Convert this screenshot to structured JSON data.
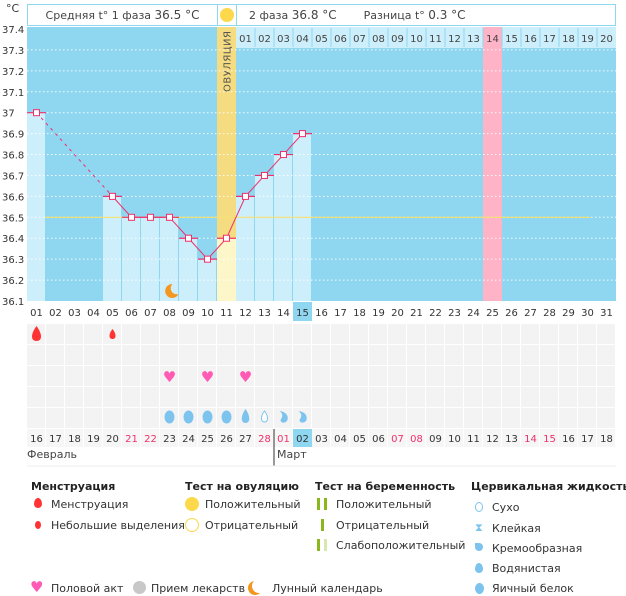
{
  "header": {
    "phase1_label": "Средняя t° 1 фаза",
    "phase1_value": "36.5 °C",
    "phase2_label": "2 фаза",
    "phase2_value": "36.8 °C",
    "diff_label": "Разница t°",
    "diff_value": "0.3 °C",
    "ovulation_label": "ОВУЛЯЦИЯ"
  },
  "colors": {
    "background": "#8fd6f0",
    "bar": "#cdeefb",
    "ovulation": "#f5dc80",
    "ovulation_low": "#fdf6c8",
    "highlight_day": "#ffb3c6",
    "line": "#f0306a",
    "coverline": "#f5e070"
  },
  "chart_data": {
    "type": "bar+line",
    "ylabel": "°C",
    "ylim": [
      36.1,
      37.4
    ],
    "y_ticks": [
      "37.4",
      "37.3",
      "37.2",
      "37.1",
      "37",
      "36.9",
      "36.8",
      "36.7",
      "36.6",
      "36.5",
      "36.4",
      "36.3",
      "36.2",
      "36.1"
    ],
    "cycle_days": [
      "01",
      "02",
      "03",
      "04",
      "05",
      "06",
      "07",
      "08",
      "09",
      "10",
      "11",
      "12",
      "13",
      "14",
      "15",
      "16",
      "17",
      "18",
      "19",
      "20",
      "21",
      "22",
      "23",
      "24",
      "25",
      "26",
      "27",
      "28",
      "29",
      "30",
      "31"
    ],
    "temperatures": [
      37.0,
      null,
      null,
      null,
      36.6,
      36.5,
      36.5,
      36.5,
      36.4,
      36.3,
      36.4,
      36.6,
      36.7,
      36.8,
      36.9,
      null,
      null,
      null,
      null,
      null,
      null,
      null,
      null,
      null,
      null,
      null,
      null,
      null,
      null,
      null,
      null
    ],
    "coverline": 36.5,
    "ovulation_day": 11,
    "current_day": 15,
    "marked_day": 25,
    "post_ovulation_days": [
      "01",
      "02",
      "03",
      "04",
      "05",
      "06",
      "07",
      "08",
      "09",
      "10",
      "11",
      "12",
      "13",
      "14",
      "15",
      "16",
      "17",
      "18",
      "19",
      "20"
    ],
    "calendar_dates": [
      "16",
      "17",
      "18",
      "19",
      "20",
      "21",
      "22",
      "23",
      "24",
      "25",
      "26",
      "27",
      "28",
      "01",
      "02",
      "03",
      "04",
      "05",
      "06",
      "07",
      "08",
      "09",
      "10",
      "11",
      "12",
      "13",
      "14",
      "15",
      "16",
      "17",
      "18"
    ],
    "weekend_indices": [
      5,
      6,
      12,
      13,
      19,
      20,
      26,
      27
    ],
    "months": [
      "Февраль",
      "Март"
    ],
    "menstruation": {
      "1": "heavy",
      "5": "light"
    },
    "intercourse_days": [
      8,
      10,
      12
    ],
    "moon_day": 8,
    "cervical_fluid": {
      "8": "egg",
      "9": "egg",
      "10": "egg",
      "11": "egg",
      "12": "watery",
      "13": "dry",
      "14": "creamy",
      "15": "creamy"
    }
  },
  "legend": {
    "menstruation": {
      "title": "Менструация",
      "items": [
        "Менструация",
        "Небольшие выделения"
      ]
    },
    "ovulation_test": {
      "title": "Тест на овуляцию",
      "items": [
        "Положительный",
        "Отрицательный"
      ]
    },
    "pregnancy_test": {
      "title": "Тест на беременность",
      "items": [
        "Положительный",
        "Отрицательный",
        "Слабоположительный"
      ]
    },
    "cervical": {
      "title": "Цервикальная жидкость",
      "items": [
        "Сухо",
        "Клейкая",
        "Кремообразная",
        "Водянистая",
        "Яичный белок"
      ]
    },
    "other": [
      "Половой акт",
      "Прием лекарств",
      "Лунный календарь"
    ]
  }
}
